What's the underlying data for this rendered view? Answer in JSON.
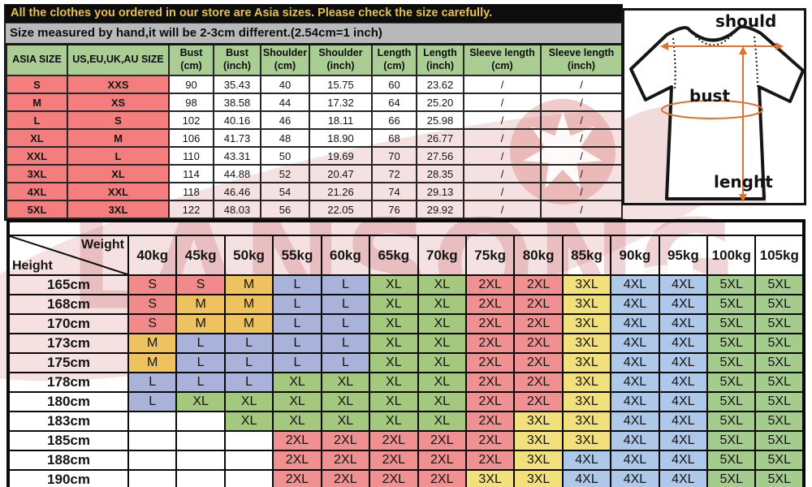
{
  "banners": {
    "line1": "All the clothes you ordered in our store are Asia sizes. Please check the size carefully.",
    "line2": "Size measured by hand,it will be 2-3cm different.(2.54cm=1 inch)"
  },
  "size_table": {
    "headers": [
      [
        "ASIA SIZE"
      ],
      [
        "US,EU,UK,AU SIZE"
      ],
      [
        "Bust",
        "(cm)"
      ],
      [
        "Bust",
        "(inch)"
      ],
      [
        "Shoulder",
        "(cm)"
      ],
      [
        "Shoulder",
        "(inch)"
      ],
      [
        "Length",
        "(cm)"
      ],
      [
        "Length",
        "(inch)"
      ],
      [
        "Sleeve length",
        "(cm)"
      ],
      [
        "Sleeve length",
        "(inch)"
      ]
    ],
    "rows": [
      [
        "S",
        "XXS",
        "90",
        "35.43",
        "40",
        "15.75",
        "60",
        "23.62",
        "/",
        "/"
      ],
      [
        "M",
        "XS",
        "98",
        "38.58",
        "44",
        "17.32",
        "64",
        "25.20",
        "/",
        "/"
      ],
      [
        "L",
        "S",
        "102",
        "40.16",
        "46",
        "18.11",
        "66",
        "25.98",
        "/",
        "/"
      ],
      [
        "XL",
        "M",
        "106",
        "41.73",
        "48",
        "18.90",
        "68",
        "26.77",
        "/",
        "/"
      ],
      [
        "XXL",
        "L",
        "110",
        "43.31",
        "50",
        "19.69",
        "70",
        "27.56",
        "/",
        "/"
      ],
      [
        "3XL",
        "XL",
        "114",
        "44.88",
        "52",
        "20.47",
        "72",
        "28.35",
        "/",
        "/"
      ],
      [
        "4XL",
        "XXL",
        "118",
        "46.46",
        "54",
        "21.26",
        "74",
        "29.13",
        "/",
        "/"
      ],
      [
        "5XL",
        "3XL",
        "122",
        "48.03",
        "56",
        "22.05",
        "76",
        "29.92",
        "/",
        "/"
      ]
    ]
  },
  "diagram": {
    "shoulder_label": "should",
    "bust_label": "bust",
    "length_label": "lenght"
  },
  "matrix_table": {
    "corner": {
      "top": "Weight",
      "bottom": "Height"
    },
    "weights": [
      "40kg",
      "45kg",
      "50kg",
      "55kg",
      "60kg",
      "65kg",
      "70kg",
      "75kg",
      "80kg",
      "85kg",
      "90kg",
      "95kg",
      "100kg",
      "105kg"
    ],
    "rows": [
      {
        "height": "165cm",
        "sizes": [
          "S",
          "S",
          "M",
          "L",
          "L",
          "XL",
          "XL",
          "2XL",
          "2XL",
          "3XL",
          "4XL",
          "4XL",
          "5XL",
          "5XL"
        ]
      },
      {
        "height": "168cm",
        "sizes": [
          "S",
          "M",
          "M",
          "L",
          "L",
          "XL",
          "XL",
          "2XL",
          "2XL",
          "3XL",
          "4XL",
          "4XL",
          "5XL",
          "5XL"
        ]
      },
      {
        "height": "170cm",
        "sizes": [
          "S",
          "M",
          "M",
          "L",
          "L",
          "XL",
          "XL",
          "2XL",
          "2XL",
          "3XL",
          "4XL",
          "4XL",
          "5XL",
          "5XL"
        ]
      },
      {
        "height": "173cm",
        "sizes": [
          "M",
          "L",
          "L",
          "L",
          "L",
          "XL",
          "XL",
          "2XL",
          "2XL",
          "3XL",
          "4XL",
          "4XL",
          "5XL",
          "5XL"
        ]
      },
      {
        "height": "175cm",
        "sizes": [
          "M",
          "L",
          "L",
          "L",
          "L",
          "XL",
          "XL",
          "2XL",
          "2XL",
          "3XL",
          "4XL",
          "4XL",
          "5XL",
          "5XL"
        ]
      },
      {
        "height": "178cm",
        "sizes": [
          "L",
          "L",
          "L",
          "XL",
          "XL",
          "XL",
          "XL",
          "2XL",
          "2XL",
          "3XL",
          "4XL",
          "4XL",
          "5XL",
          "5XL"
        ]
      },
      {
        "height": "180cm",
        "sizes": [
          "L",
          "XL",
          "XL",
          "XL",
          "XL",
          "XL",
          "XL",
          "2XL",
          "2XL",
          "3XL",
          "4XL",
          "4XL",
          "5XL",
          "5XL"
        ]
      },
      {
        "height": "183cm",
        "sizes": [
          "",
          "",
          "XL",
          "XL",
          "XL",
          "XL",
          "XL",
          "2XL",
          "3XL",
          "3XL",
          "4XL",
          "4XL",
          "5XL",
          "5XL"
        ]
      },
      {
        "height": "185cm",
        "sizes": [
          "",
          "",
          "",
          "2XL",
          "2XL",
          "2XL",
          "2XL",
          "2XL",
          "3XL",
          "3XL",
          "4XL",
          "4XL",
          "5XL",
          "5XL"
        ]
      },
      {
        "height": "188cm",
        "sizes": [
          "",
          "",
          "",
          "2XL",
          "2XL",
          "2XL",
          "2XL",
          "2XL",
          "3XL",
          "4XL",
          "4XL",
          "4XL",
          "5XL",
          "5XL"
        ]
      },
      {
        "height": "190cm",
        "sizes": [
          "",
          "",
          "",
          "2XL",
          "2XL",
          "2XL",
          "2XL",
          "3XL",
          "3XL",
          "4XL",
          "4XL",
          "4XL",
          "5XL",
          "5XL"
        ]
      }
    ]
  },
  "watermark": {
    "text": "LANSONG"
  },
  "colors": {
    "banner_bg": "#0d0d0d",
    "banner_text": "#e5c04e",
    "subbanner_bg": "#b9b9b9",
    "header_green": "#a9cd92",
    "label_red": "#f47e7e",
    "arrow_orange": "#e0722f",
    "sizes": {
      "S": "#f18a8a",
      "M": "#eec35f",
      "L": "#a9b3d9",
      "XL": "#a4c97e",
      "2XL": "#f19090",
      "3XL": "#f1e07c",
      "4XL": "#adc8e9",
      "5XL": "#a4cc8d"
    }
  }
}
